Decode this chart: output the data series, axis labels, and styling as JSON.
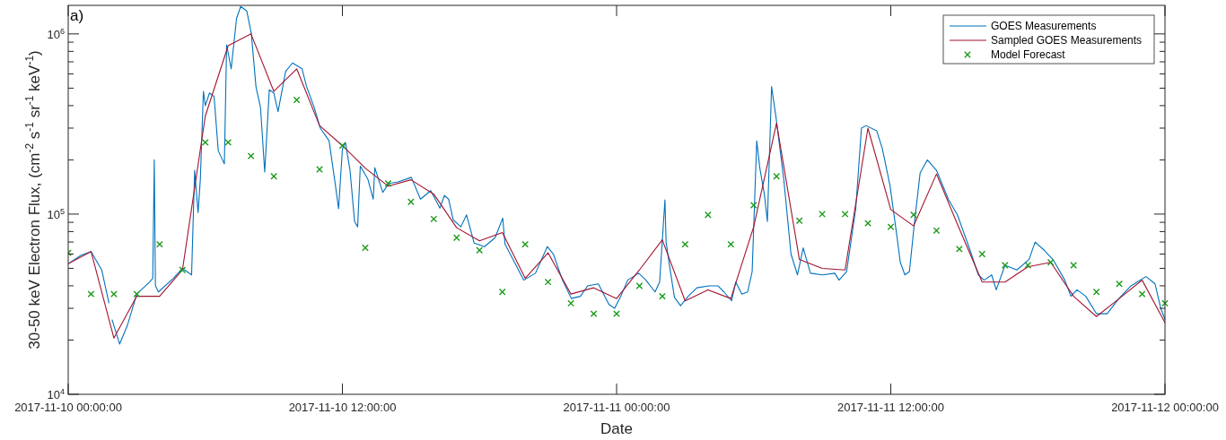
{
  "chart_data": {
    "type": "line",
    "xlabel": "Date",
    "ylabel": "30-50 keV Electron Flux, (cm$^{-2}$ s$^{-1}$ sr$^{-1}$ keV$^{-1}$)",
    "annotations": [
      "a)"
    ],
    "log": "y",
    "grid": false,
    "legend": "top right",
    "xlim": [
      "2017-11-10T00:00",
      "2017-11-12T00:00"
    ],
    "xticks": [
      {
        "value": "2017-11-10T00:00",
        "label": "2017-11-10 00:00:00"
      },
      {
        "value": "2017-11-10T12:00",
        "label": "2017-11-10 12:00:00"
      },
      {
        "value": "2017-11-11T00:00",
        "label": "2017-11-11 00:00:00"
      },
      {
        "value": "2017-11-11T12:00",
        "label": "2017-11-11 12:00:00"
      },
      {
        "value": "2017-11-12T00:00",
        "label": "2017-11-12 00:00:00"
      }
    ],
    "ylim": [
      10000,
      1440000
    ],
    "yticks": [
      {
        "value": 10000,
        "label": "10$^{4}$"
      },
      {
        "value": 20000,
        "label": null
      },
      {
        "value": 30000,
        "label": null
      },
      {
        "value": 40000,
        "label": null
      },
      {
        "value": 50000,
        "label": null
      },
      {
        "value": 60000,
        "label": null
      },
      {
        "value": 70000,
        "label": null
      },
      {
        "value": 80000,
        "label": null
      },
      {
        "value": 90000,
        "label": null
      },
      {
        "value": 100000,
        "label": "10$^{5}$"
      },
      {
        "value": 200000,
        "label": null
      },
      {
        "value": 300000,
        "label": null
      },
      {
        "value": 400000,
        "label": null
      },
      {
        "value": 500000,
        "label": null
      },
      {
        "value": 600000,
        "label": null
      },
      {
        "value": 700000,
        "label": null
      },
      {
        "value": 800000,
        "label": null
      },
      {
        "value": 900000,
        "label": null
      },
      {
        "value": 1000000,
        "label": "10$^{6}$"
      }
    ],
    "x": [
      "2017-11-10T00:00",
      "2017-11-10T01:00",
      "2017-11-10T02:00",
      "2017-11-10T03:00",
      "2017-11-10T04:00",
      "2017-11-10T05:00",
      "2017-11-10T06:00",
      "2017-11-10T07:00",
      "2017-11-10T08:00",
      "2017-11-10T09:00",
      "2017-11-10T10:00",
      "2017-11-10T11:00",
      "2017-11-10T12:00",
      "2017-11-10T13:00",
      "2017-11-10T14:00",
      "2017-11-10T15:00",
      "2017-11-10T16:00",
      "2017-11-10T17:00",
      "2017-11-10T18:00",
      "2017-11-10T19:00",
      "2017-11-10T20:00",
      "2017-11-10T21:00",
      "2017-11-10T22:00",
      "2017-11-10T23:00",
      "2017-11-11T00:00",
      "2017-11-11T01:00",
      "2017-11-11T02:00",
      "2017-11-11T03:00",
      "2017-11-11T04:00",
      "2017-11-11T05:00",
      "2017-11-11T06:00",
      "2017-11-11T07:00",
      "2017-11-11T08:00",
      "2017-11-11T09:00",
      "2017-11-11T10:00",
      "2017-11-11T11:00",
      "2017-11-11T12:00",
      "2017-11-11T13:00",
      "2017-11-11T14:00",
      "2017-11-11T15:00",
      "2017-11-11T16:00",
      "2017-11-11T17:00",
      "2017-11-11T18:00",
      "2017-11-11T19:00",
      "2017-11-11T20:00",
      "2017-11-11T21:00",
      "2017-11-11T22:00",
      "2017-11-11T23:00",
      "2017-11-12T00:00"
    ],
    "series": [
      {
        "name": "GOES Measurements",
        "color": "#0072bd",
        "x": [
          "2017-11-10T00:00",
          "2017-11-10T00:33",
          "2017-11-10T01:00",
          "2017-11-10T01:28",
          "2017-11-10T01:47",
          "2017-11-10T01:51",
          "2017-11-10T01:55",
          "2017-11-10T02:15",
          "2017-11-10T02:35",
          "2017-11-10T03:00",
          "2017-11-10T03:34",
          "2017-11-10T03:42",
          "2017-11-10T03:46",
          "2017-11-10T03:49",
          "2017-11-10T03:57",
          "2017-11-10T04:36",
          "2017-11-10T05:00",
          "2017-11-10T05:24",
          "2017-11-10T05:32",
          "2017-11-10T05:41",
          "2017-11-10T05:47",
          "2017-11-10T05:55",
          "2017-11-10T06:00",
          "2017-11-10T06:11",
          "2017-11-10T06:23",
          "2017-11-10T06:34",
          "2017-11-10T06:50",
          "2017-11-10T06:56",
          "2017-11-10T07:08",
          "2017-11-10T07:22",
          "2017-11-10T07:33",
          "2017-11-10T07:49",
          "2017-11-10T08:01",
          "2017-11-10T08:13",
          "2017-11-10T08:25",
          "2017-11-10T08:36",
          "2017-11-10T08:48",
          "2017-11-10T09:00",
          "2017-11-10T09:11",
          "2017-11-10T09:31",
          "2017-11-10T09:49",
          "2017-11-10T10:14",
          "2017-11-10T10:26",
          "2017-11-10T10:46",
          "2017-11-10T11:02",
          "2017-11-10T11:25",
          "2017-11-10T11:41",
          "2017-11-10T11:50",
          "2017-11-10T12:00",
          "2017-11-10T12:08",
          "2017-11-10T12:20",
          "2017-11-10T12:32",
          "2017-11-10T12:40",
          "2017-11-10T12:47",
          "2017-11-10T13:07",
          "2017-11-10T13:21",
          "2017-11-10T13:25",
          "2017-11-10T13:46",
          "2017-11-10T14:02",
          "2017-11-10T14:26",
          "2017-11-10T15:01",
          "2017-11-10T15:25",
          "2017-11-10T15:52",
          "2017-11-10T16:16",
          "2017-11-10T16:28",
          "2017-11-10T16:39",
          "2017-11-10T16:51",
          "2017-11-10T17:11",
          "2017-11-10T17:26",
          "2017-11-10T17:46",
          "2017-11-10T18:13",
          "2017-11-10T18:41",
          "2017-11-10T19:01",
          "2017-11-10T19:07",
          "2017-11-10T19:32",
          "2017-11-10T19:56",
          "2017-11-10T20:27",
          "2017-11-10T20:58",
          "2017-11-10T21:14",
          "2017-11-10T21:38",
          "2017-11-10T22:01",
          "2017-11-10T22:25",
          "2017-11-10T22:44",
          "2017-11-10T23:12",
          "2017-11-10T23:40",
          "2017-11-10T23:55",
          "2017-11-11T00:11",
          "2017-11-11T00:29",
          "2017-11-11T00:58",
          "2017-11-11T01:17",
          "2017-11-11T01:41",
          "2017-11-11T01:53",
          "2017-11-11T02:07",
          "2017-11-11T02:10",
          "2017-11-11T02:20",
          "2017-11-11T02:32",
          "2017-11-11T02:48",
          "2017-11-11T03:08",
          "2017-11-11T03:31",
          "2017-11-11T04:03",
          "2017-11-11T04:26",
          "2017-11-11T04:42",
          "2017-11-11T05:02",
          "2017-11-11T05:13",
          "2017-11-11T05:29",
          "2017-11-11T05:44",
          "2017-11-11T05:56",
          "2017-11-11T06:08",
          "2017-11-11T06:16",
          "2017-11-11T06:28",
          "2017-11-11T06:36",
          "2017-11-11T06:47",
          "2017-11-11T06:59",
          "2017-11-11T07:19",
          "2017-11-11T07:38",
          "2017-11-11T07:55",
          "2017-11-11T08:10",
          "2017-11-11T08:29",
          "2017-11-11T09:01",
          "2017-11-11T09:33",
          "2017-11-11T09:44",
          "2017-11-11T10:04",
          "2017-11-11T10:28",
          "2017-11-11T10:43",
          "2017-11-11T10:55",
          "2017-11-11T11:23",
          "2017-11-11T11:38",
          "2017-11-11T11:58",
          "2017-11-11T12:17",
          "2017-11-11T12:25",
          "2017-11-11T12:37",
          "2017-11-11T12:49",
          "2017-11-11T13:01",
          "2017-11-11T13:17",
          "2017-11-11T13:36",
          "2017-11-11T14:00",
          "2017-11-11T14:31",
          "2017-11-11T14:55",
          "2017-11-11T15:26",
          "2017-11-11T15:50",
          "2017-11-11T16:05",
          "2017-11-11T16:25",
          "2017-11-11T16:37",
          "2017-11-11T17:00",
          "2017-11-11T17:31",
          "2017-11-11T18:03",
          "2017-11-11T18:19",
          "2017-11-11T18:43",
          "2017-11-11T19:06",
          "2017-11-11T19:37",
          "2017-11-11T19:53",
          "2017-11-11T20:09",
          "2017-11-11T20:32",
          "2017-11-11T21:00",
          "2017-11-11T21:28",
          "2017-11-11T21:59",
          "2017-11-11T22:31",
          "2017-11-11T23:10",
          "2017-11-11T23:34",
          "2017-11-11T23:49",
          "2017-11-12T00:00"
        ],
        "values": [
          53000,
          59000,
          62000,
          49000,
          32000,
          null,
          26000,
          19000,
          24000,
          36000,
          42000,
          44000,
          200000,
          40000,
          37000,
          44000,
          50000,
          46000,
          175000,
          102000,
          156000,
          480000,
          400000,
          470000,
          450000,
          225000,
          190000,
          870000,
          640000,
          1220000,
          1420000,
          1340000,
          1000000,
          510000,
          390000,
          171000,
          490000,
          470000,
          370000,
          620000,
          690000,
          640000,
          510000,
          390000,
          300000,
          255000,
          148000,
          107000,
          230000,
          250000,
          175000,
          91000,
          85000,
          185000,
          156000,
          121000,
          181000,
          132000,
          148000,
          151000,
          160000,
          121000,
          135000,
          108000,
          127000,
          121000,
          93000,
          85000,
          99000,
          69000,
          66000,
          74000,
          95000,
          68000,
          54000,
          43000,
          47000,
          66000,
          60000,
          43000,
          34000,
          35000,
          40000,
          41000,
          31500,
          30000,
          35000,
          43000,
          47000,
          43000,
          37000,
          42000,
          120000,
          70000,
          50000,
          34500,
          31000,
          35000,
          39000,
          40000,
          40000,
          37000,
          33000,
          42000,
          36000,
          37000,
          48000,
          255000,
          181000,
          129000,
          91000,
          510000,
          340000,
          156000,
          60000,
          46000,
          65000,
          47000,
          46000,
          47000,
          43000,
          48000,
          107000,
          300000,
          310000,
          290000,
          230000,
          144000,
          73000,
          54000,
          46000,
          48000,
          85000,
          169000,
          200000,
          175000,
          121000,
          99000,
          65000,
          46000,
          43000,
          46000,
          38000,
          52000,
          49000,
          56000,
          70000,
          63000,
          56000,
          43000,
          35000,
          38000,
          35000,
          28000,
          28000,
          34000,
          40000,
          45000,
          41000,
          30000,
          26000
        ]
      },
      {
        "name": "Sampled GOES Measurements",
        "color": "#a2142f",
        "values": [
          53000,
          62000,
          20500,
          35000,
          35000,
          49000,
          350000,
          860000,
          1000000,
          480000,
          640000,
          310000,
          240000,
          180000,
          143000,
          155000,
          129000,
          84000,
          71000,
          79000,
          44000,
          61000,
          36000,
          39000,
          34000,
          49000,
          72000,
          33000,
          38000,
          34000,
          85000,
          320000,
          56000,
          50000,
          49000,
          300000,
          106000,
          86000,
          167000,
          83000,
          42000,
          42000,
          51000,
          54000,
          35000,
          27000,
          34000,
          43000,
          25000
        ]
      },
      {
        "name": "Model Forecast",
        "type": "scatter",
        "marker": "cross",
        "color": "#1a9a1a",
        "values": [
          61000,
          36000,
          36000,
          36000,
          68000,
          49000,
          250000,
          250000,
          210000,
          162000,
          430000,
          177000,
          240000,
          65000,
          148000,
          117000,
          94000,
          74000,
          63000,
          37000,
          68000,
          42000,
          32000,
          28000,
          28000,
          40000,
          35000,
          68000,
          99000,
          68000,
          112000,
          162000,
          92000,
          100000,
          100000,
          89000,
          85000,
          99000,
          81000,
          64000,
          60000,
          52000,
          52000,
          54000,
          52000,
          37000,
          41000,
          36000,
          32000
        ]
      }
    ]
  }
}
